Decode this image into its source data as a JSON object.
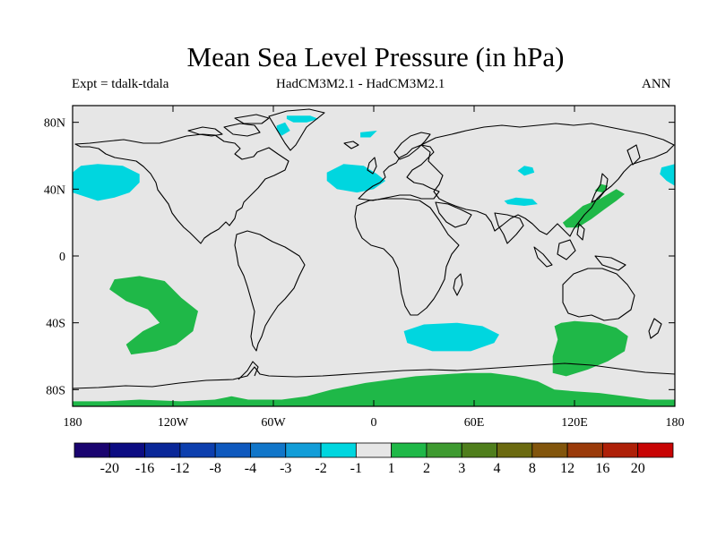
{
  "title": "Mean Sea Level Pressure (in hPa)",
  "subtitle": {
    "left": "Expt = tdalk-tdala",
    "center": "HadCM3M2.1 - HadCM3M2.1",
    "right": "ANN"
  },
  "map": {
    "projection": "cylindrical-equidistant",
    "lon_range": [
      -180,
      180
    ],
    "lat_range": [
      -90,
      90
    ],
    "background_color": "#e6e6e6",
    "x_ticks": [
      {
        "lon": -180,
        "label": "180"
      },
      {
        "lon": -120,
        "label": "120W"
      },
      {
        "lon": -60,
        "label": "60W"
      },
      {
        "lon": 0,
        "label": "0"
      },
      {
        "lon": 60,
        "label": "60E"
      },
      {
        "lon": 120,
        "label": "120E"
      },
      {
        "lon": 180,
        "label": "180"
      }
    ],
    "y_ticks": [
      {
        "lat": 80,
        "label": "80N"
      },
      {
        "lat": 40,
        "label": "40N"
      },
      {
        "lat": 0,
        "label": "0"
      },
      {
        "lat": -40,
        "label": "40S"
      },
      {
        "lat": -80,
        "label": "80S"
      }
    ],
    "anomaly_regions": [
      {
        "name": "north-pacific-negative",
        "level": "-2 to -1",
        "color": "#00d6df",
        "polygon": [
          [
            -180,
            50
          ],
          [
            -175,
            54
          ],
          [
            -165,
            55
          ],
          [
            -150,
            54
          ],
          [
            -140,
            49
          ],
          [
            -140,
            44
          ],
          [
            -146,
            38
          ],
          [
            -155,
            35
          ],
          [
            -165,
            33
          ],
          [
            -180,
            38
          ]
        ]
      },
      {
        "name": "dateline-pacific-negative-east",
        "level": "-2 to -1",
        "color": "#00d6df",
        "polygon": [
          [
            172,
            53
          ],
          [
            180,
            55
          ],
          [
            180,
            42
          ],
          [
            175,
            45
          ],
          [
            171,
            49
          ]
        ]
      },
      {
        "name": "greenland-negative",
        "level": "-2 to -1",
        "color": "#00d6df",
        "polygon": [
          [
            -52,
            84
          ],
          [
            -38,
            84
          ],
          [
            -33,
            82
          ],
          [
            -40,
            80
          ],
          [
            -48,
            80
          ],
          [
            -52,
            82
          ]
        ]
      },
      {
        "name": "greenland-west-negative",
        "level": "-2 to -1",
        "color": "#00d6df",
        "polygon": [
          [
            -58,
            78
          ],
          [
            -53,
            80
          ],
          [
            -50,
            75
          ],
          [
            -55,
            72
          ],
          [
            -58,
            75
          ]
        ]
      },
      {
        "name": "norwegian-sea-negative",
        "level": "-2 to -1",
        "color": "#00d6df",
        "polygon": [
          [
            -8,
            74
          ],
          [
            2,
            75
          ],
          [
            -2,
            71
          ],
          [
            -8,
            71
          ]
        ]
      },
      {
        "name": "north-atlantic-negative",
        "level": "-2 to -1",
        "color": "#00d6df",
        "polygon": [
          [
            -28,
            50
          ],
          [
            -18,
            55
          ],
          [
            -6,
            54
          ],
          [
            2,
            49
          ],
          [
            7,
            45
          ],
          [
            0,
            40
          ],
          [
            -10,
            38
          ],
          [
            -22,
            40
          ],
          [
            -28,
            45
          ]
        ]
      },
      {
        "name": "central-asia-negative",
        "level": "-2 to -1",
        "color": "#00d6df",
        "polygon": [
          [
            86,
            51
          ],
          [
            90,
            54
          ],
          [
            95,
            53
          ],
          [
            96,
            50
          ],
          [
            90,
            48
          ]
        ]
      },
      {
        "name": "himalaya-negative",
        "level": "-2 to -1",
        "color": "#00d6df",
        "polygon": [
          [
            78,
            33
          ],
          [
            85,
            35
          ],
          [
            95,
            34
          ],
          [
            98,
            31
          ],
          [
            90,
            30
          ],
          [
            80,
            31
          ]
        ]
      },
      {
        "name": "southern-indian-negative",
        "level": "-2 to -1",
        "color": "#00d6df",
        "polygon": [
          [
            18,
            -45
          ],
          [
            30,
            -41
          ],
          [
            50,
            -40
          ],
          [
            65,
            -42
          ],
          [
            75,
            -47
          ],
          [
            72,
            -52
          ],
          [
            58,
            -57
          ],
          [
            35,
            -57
          ],
          [
            20,
            -52
          ]
        ]
      },
      {
        "name": "south-pacific-positive",
        "level": "1 to 2",
        "color": "#1fb848",
        "polygon": [
          [
            -155,
            -14
          ],
          [
            -140,
            -12
          ],
          [
            -125,
            -15
          ],
          [
            -115,
            -25
          ],
          [
            -105,
            -33
          ],
          [
            -108,
            -45
          ],
          [
            -118,
            -53
          ],
          [
            -130,
            -57
          ],
          [
            -145,
            -59
          ],
          [
            -148,
            -53
          ],
          [
            -138,
            -45
          ],
          [
            -128,
            -40
          ],
          [
            -135,
            -32
          ],
          [
            -148,
            -27
          ],
          [
            -158,
            -20
          ]
        ]
      },
      {
        "name": "west-pacific-positive",
        "level": "1 to 2",
        "color": "#1fb848",
        "polygon": [
          [
            113,
            20
          ],
          [
            118,
            24
          ],
          [
            125,
            30
          ],
          [
            135,
            34
          ],
          [
            145,
            40
          ],
          [
            150,
            37
          ],
          [
            145,
            33
          ],
          [
            138,
            28
          ],
          [
            130,
            22
          ],
          [
            122,
            17
          ],
          [
            115,
            17
          ]
        ]
      },
      {
        "name": "japan-positive",
        "level": "1 to 2",
        "color": "#1fb848",
        "polygon": [
          [
            132,
            39
          ],
          [
            136,
            43
          ],
          [
            140,
            42
          ],
          [
            137,
            38
          ]
        ]
      },
      {
        "name": "australia-south-positive",
        "level": "1 to 2",
        "color": "#1fb848",
        "polygon": [
          [
            108,
            -42
          ],
          [
            112,
            -40
          ],
          [
            120,
            -39
          ],
          [
            135,
            -40
          ],
          [
            145,
            -43
          ],
          [
            152,
            -48
          ],
          [
            150,
            -57
          ],
          [
            140,
            -63
          ],
          [
            128,
            -68
          ],
          [
            115,
            -72
          ],
          [
            107,
            -70
          ],
          [
            107,
            -60
          ],
          [
            110,
            -50
          ]
        ]
      },
      {
        "name": "antarctic-positive",
        "level": "1 to 2",
        "color": "#1fb848",
        "polygon": [
          [
            -180,
            -90
          ],
          [
            180,
            -90
          ],
          [
            180,
            -86
          ],
          [
            165,
            -86
          ],
          [
            150,
            -84
          ],
          [
            135,
            -82
          ],
          [
            120,
            -81
          ],
          [
            108,
            -80
          ],
          [
            98,
            -75
          ],
          [
            85,
            -72
          ],
          [
            70,
            -70
          ],
          [
            55,
            -70
          ],
          [
            40,
            -71
          ],
          [
            25,
            -72
          ],
          [
            10,
            -74
          ],
          [
            -5,
            -76
          ],
          [
            -15,
            -78
          ],
          [
            -25,
            -80
          ],
          [
            -40,
            -84
          ],
          [
            -55,
            -86
          ],
          [
            -75,
            -86
          ],
          [
            -85,
            -84
          ],
          [
            -95,
            -86
          ],
          [
            -115,
            -87
          ],
          [
            -140,
            -86
          ],
          [
            -160,
            -87
          ],
          [
            -180,
            -87
          ]
        ]
      }
    ]
  },
  "colorbar": {
    "labels": [
      "-20",
      "-16",
      "-12",
      "-8",
      "-4",
      "-3",
      "-2",
      "-1",
      "1",
      "2",
      "3",
      "4",
      "8",
      "12",
      "16",
      "20"
    ],
    "colors": [
      "#1a0470",
      "#0c0c82",
      "#0a2798",
      "#0d3fae",
      "#0f59be",
      "#1176c9",
      "#129dd8",
      "#00d6df",
      "#e6e6e6",
      "#1fb848",
      "#3e9a30",
      "#4f7e1c",
      "#6b6a10",
      "#82550c",
      "#9a3a0a",
      "#ae2008",
      "#c80404"
    ]
  }
}
